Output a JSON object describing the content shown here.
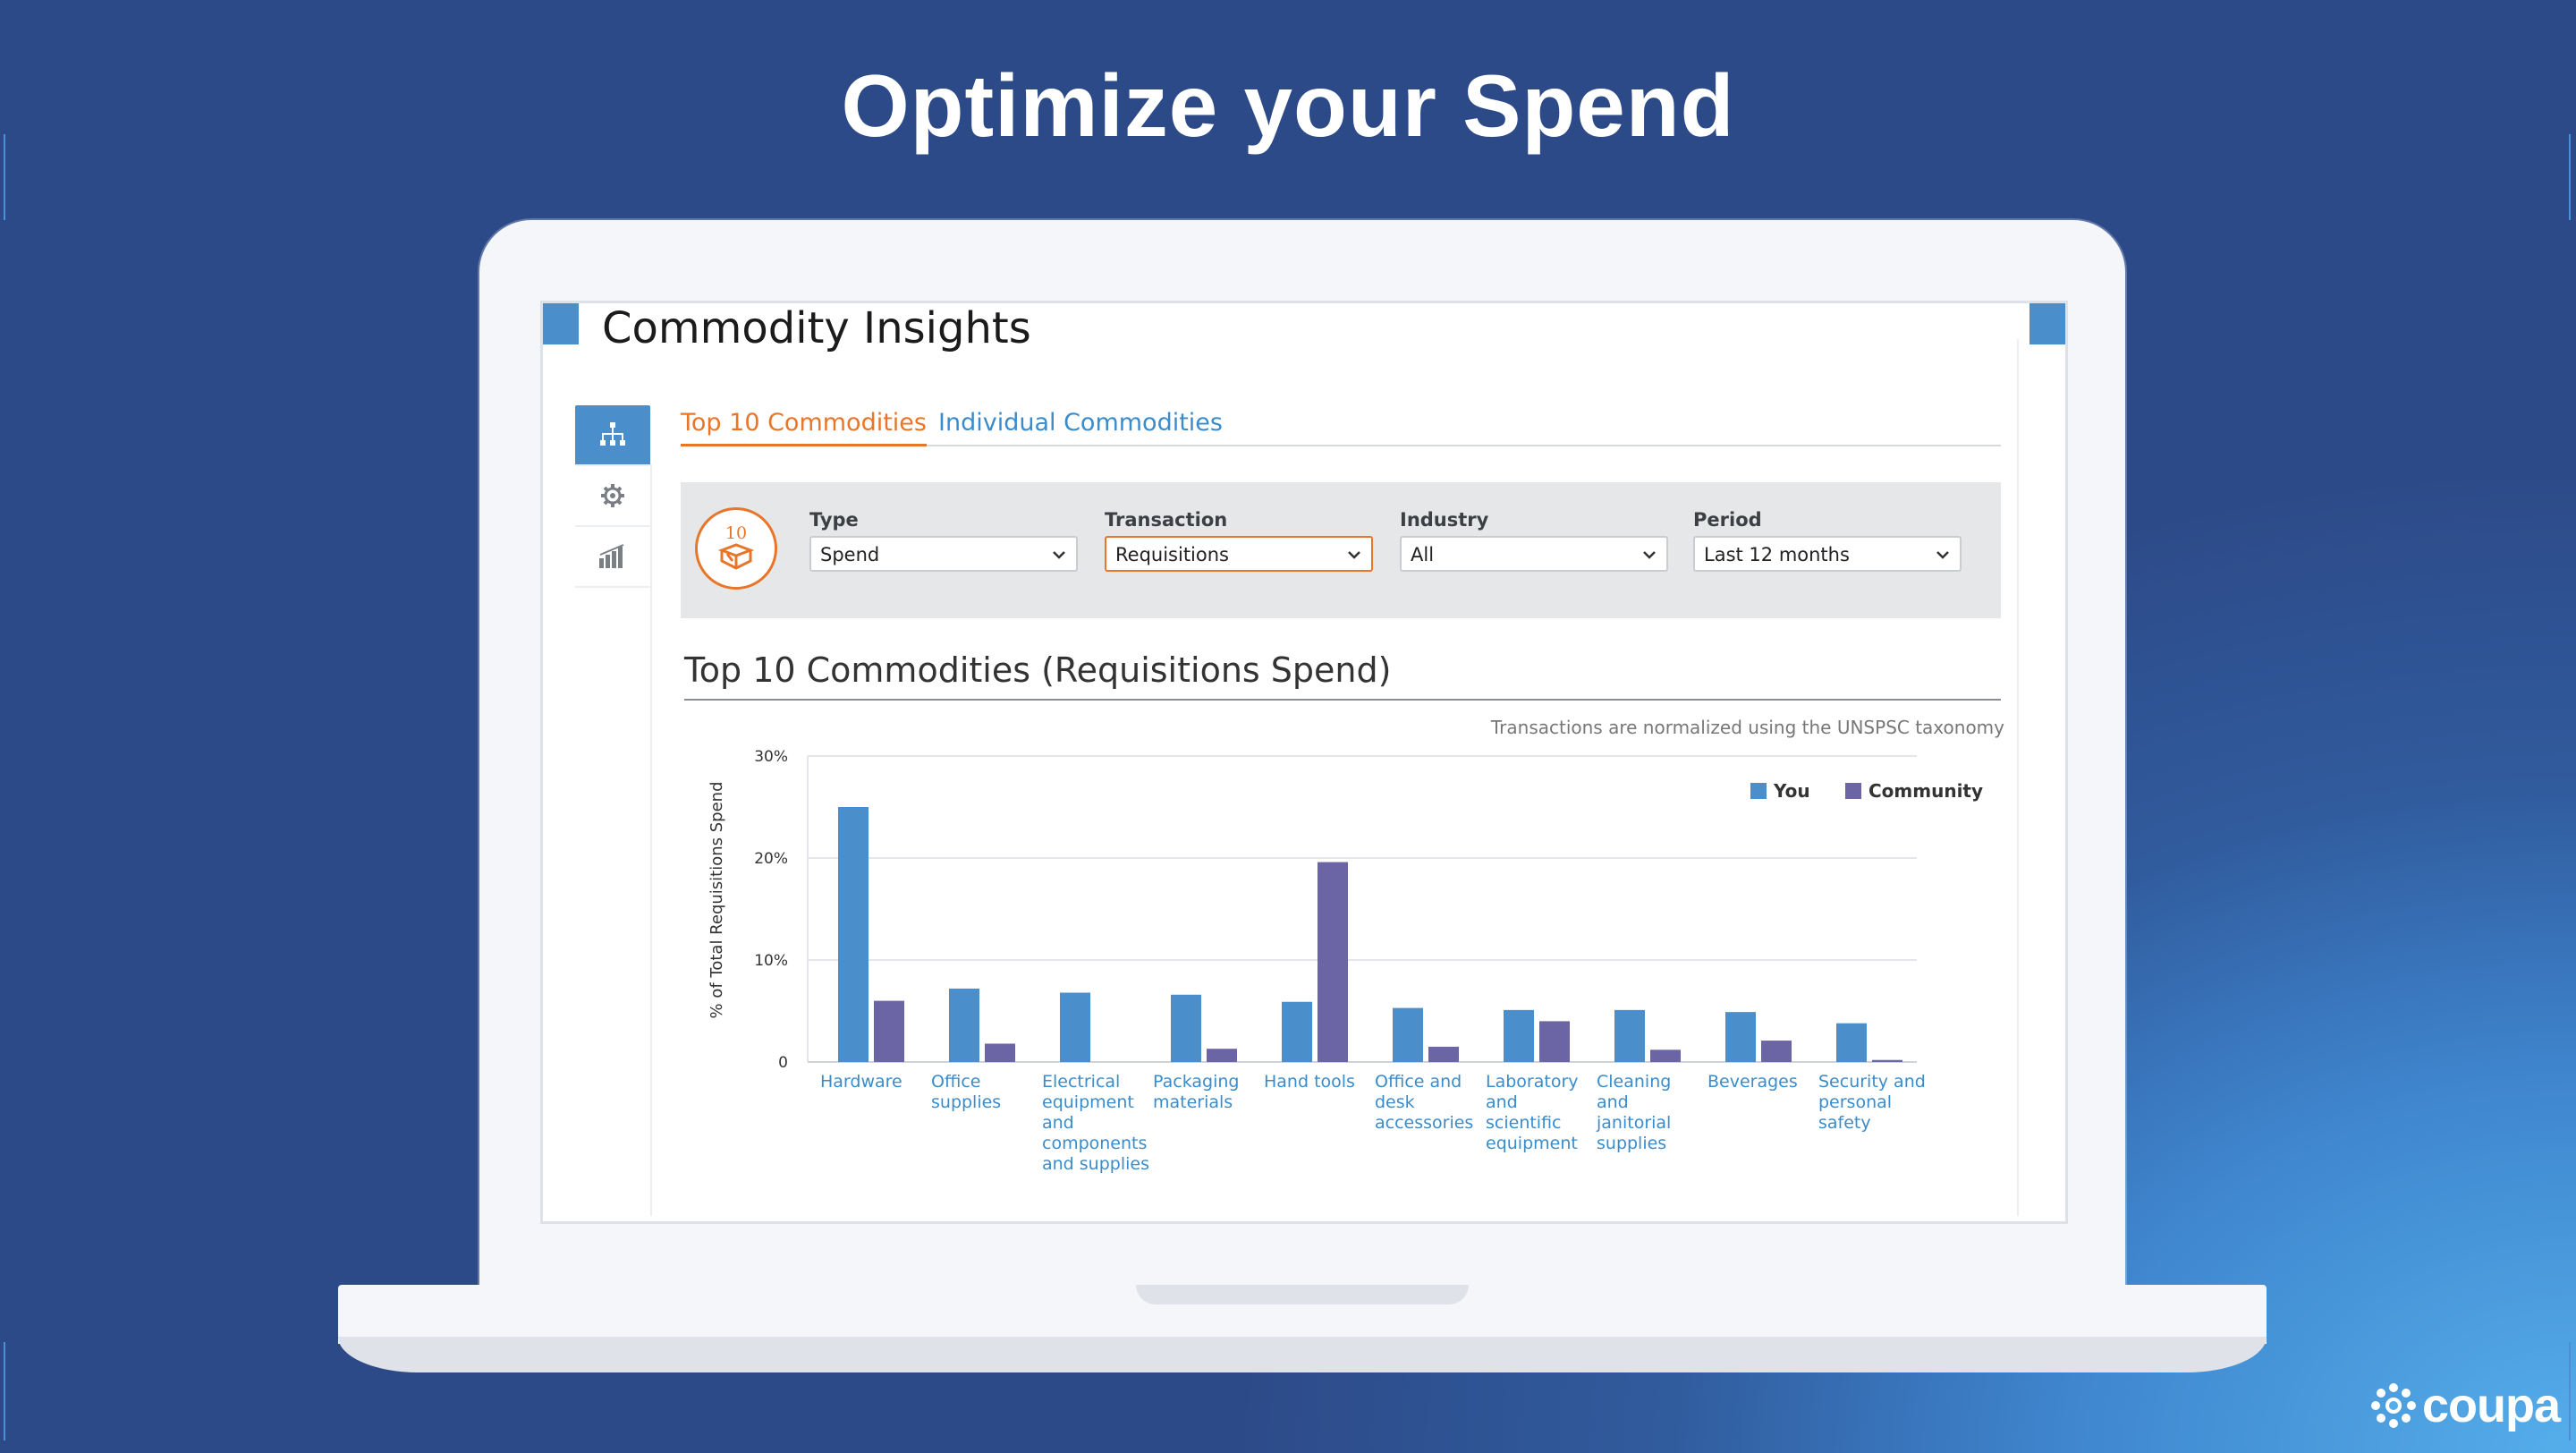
{
  "slide": {
    "title": "Optimize your Spend"
  },
  "app": {
    "title": "Commodity Insights",
    "tabs": [
      {
        "label": "Top 10 Commodities",
        "active": true
      },
      {
        "label": "Individual Commodities",
        "active": false
      }
    ],
    "side_nav": [
      "hierarchy-icon",
      "gear-icon",
      "bar-chart-icon"
    ],
    "badge_number": "10",
    "filters": {
      "type": {
        "label": "Type",
        "value": "Spend"
      },
      "transaction": {
        "label": "Transaction",
        "value": "Requisitions"
      },
      "industry": {
        "label": "Industry",
        "value": "All"
      },
      "period": {
        "label": "Period",
        "value": "Last 12 months"
      }
    },
    "chart_title": "Top 10 Commodities (Requisitions Spend)",
    "note": "Transactions are normalized using the UNSPSC taxonomy",
    "colors": {
      "you": "#4a8fcc",
      "community": "#6b65a6",
      "accent": "#e8762a",
      "link": "#3a8ccc"
    }
  },
  "brand": {
    "name": "coupa"
  },
  "chart_data": {
    "type": "bar",
    "ylabel": "% of Total Requisitions Spend",
    "y_ticks": [
      "0",
      "10%",
      "20%",
      "30%"
    ],
    "ylim": [
      0,
      30
    ],
    "legend": "top-right",
    "categories": [
      [
        "Hardware"
      ],
      [
        "Office",
        "supplies"
      ],
      [
        "Electrical",
        "equipment",
        "and",
        "components",
        "and supplies"
      ],
      [
        "Packaging",
        "materials"
      ],
      [
        "Hand tools"
      ],
      [
        "Office and",
        "desk",
        "accessories"
      ],
      [
        "Laboratory",
        "and",
        "scientific",
        "equipment"
      ],
      [
        "Cleaning",
        "and",
        "janitorial",
        "supplies"
      ],
      [
        "Beverages"
      ],
      [
        "Security and",
        "personal",
        "safety"
      ]
    ],
    "series": [
      {
        "name": "You",
        "values": [
          25,
          7.2,
          6.8,
          6.6,
          5.9,
          5.3,
          5.1,
          5.1,
          4.9,
          3.8
        ]
      },
      {
        "name": "Community",
        "values": [
          6.0,
          1.8,
          0,
          1.3,
          19.6,
          1.5,
          4.0,
          1.2,
          2.1,
          0.2
        ]
      }
    ]
  }
}
